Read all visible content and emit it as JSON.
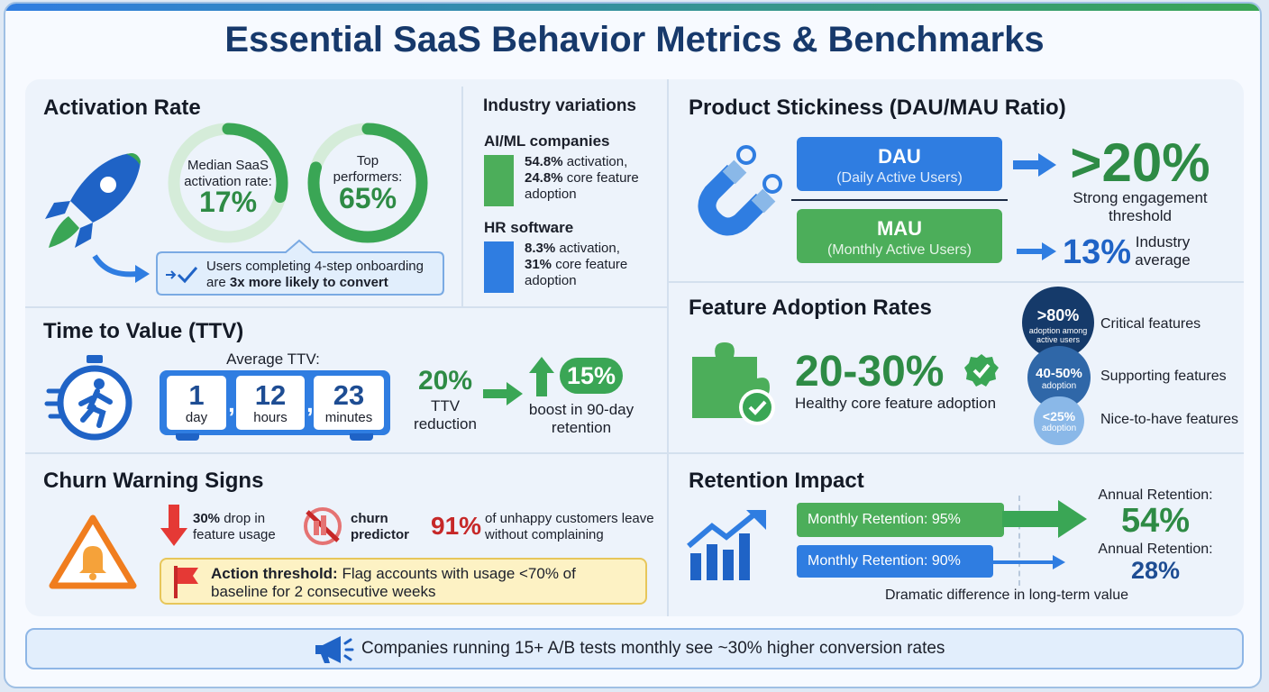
{
  "title": "Essential SaaS Behavior Metrics & Benchmarks",
  "activation": {
    "heading": "Activation Rate",
    "median": {
      "label": "Median SaaS activation rate:",
      "value": "17%"
    },
    "top": {
      "label": "Top performers:",
      "value": "65%"
    },
    "callout": {
      "text": "Users completing 4-step onboarding are ",
      "bold": "3x more likely to convert"
    }
  },
  "industry": {
    "heading": "Industry variations",
    "items": [
      {
        "name": "AI/ML companies",
        "stat1": "54.8%",
        "text1": " activation,",
        "stat2": "24.8%",
        "text2": " core feature adoption"
      },
      {
        "name": "HR software",
        "stat1": "8.3%",
        "text1": " activation,",
        "stat2": "31%",
        "text2": " core feature adoption"
      }
    ]
  },
  "ttv": {
    "heading": "Time to Value (TTV)",
    "average_label": "Average TTV:",
    "separator": ",",
    "units": [
      {
        "value": "1",
        "unit": "day"
      },
      {
        "value": "12",
        "unit": "hours"
      },
      {
        "value": "23",
        "unit": "minutes"
      }
    ],
    "reduction": {
      "value": "20%",
      "label": "TTV reduction"
    },
    "boost": {
      "value": "15%",
      "label": "boost in 90-day retention"
    }
  },
  "churn": {
    "heading": "Churn Warning Signs",
    "drop": {
      "bold": "30%",
      "text": " drop in feature usage"
    },
    "predictor": "churn predictor",
    "unhappy": {
      "value": "91%",
      "text": "of unhappy customers leave without complaining"
    },
    "action": {
      "bold": "Action threshold:",
      "text": " Flag accounts with usage <70% of baseline for 2 consecutive weeks"
    }
  },
  "stickiness": {
    "heading": "Product Stickiness (DAU/MAU Ratio)",
    "dau": {
      "label": "DAU",
      "sub": "(Daily Active Users)"
    },
    "mau": {
      "label": "MAU",
      "sub": "(Monthly Active Users)"
    },
    "strong": {
      "value": ">20%",
      "label": "Strong engagement threshold"
    },
    "industry": {
      "value": "13%",
      "label": "Industry average"
    }
  },
  "adoption": {
    "heading": "Feature Adoption Rates",
    "main": {
      "value": "20-30%",
      "label": "Healthy core feature adoption"
    },
    "tiers": [
      {
        "value": ">80%",
        "sub": "adoption among active users",
        "label": "Critical features"
      },
      {
        "value": "40-50%",
        "sub": "adoption",
        "label": "Supporting features"
      },
      {
        "value": "<25%",
        "sub": "adoption",
        "label": "Nice-to-have features"
      }
    ]
  },
  "retention": {
    "heading": "Retention Impact",
    "rows": [
      {
        "bar_label": "Monthly Retention: 95%",
        "annual_label": "Annual Retention:",
        "annual_value": "54%"
      },
      {
        "bar_label": "Monthly Retention: 90%",
        "annual_label": "Annual Retention:",
        "annual_value": "28%"
      }
    ],
    "note": "Dramatic difference in long-term value"
  },
  "footer": "Companies running 15+ A/B tests monthly see ~30% higher conversion rates"
}
